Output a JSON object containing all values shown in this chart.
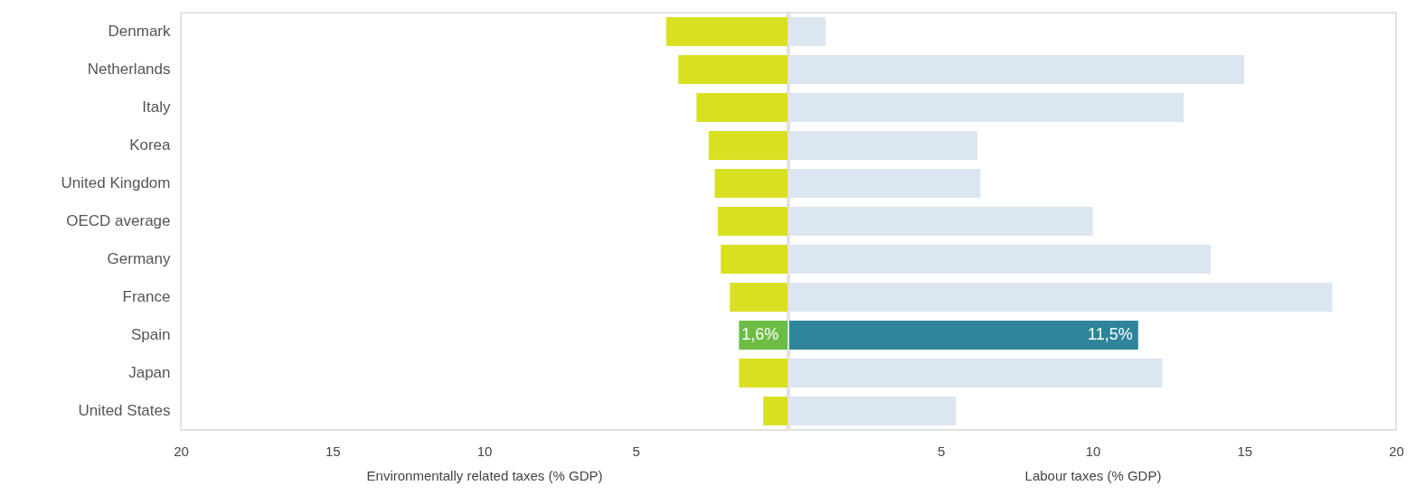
{
  "chart_data": [
    {
      "type": "bar",
      "orientation": "horizontal",
      "categories": [
        "Denmark",
        "Netherlands",
        "Italy",
        "Korea",
        "United Kingdom",
        "OECD average",
        "Germany",
        "France",
        "Spain",
        "Japan",
        "United States"
      ],
      "values": [
        4.0,
        3.6,
        3.0,
        2.6,
        2.4,
        2.3,
        2.2,
        1.9,
        1.6,
        1.6,
        0.8
      ],
      "colors": [
        "#d9e021",
        "#d9e021",
        "#d9e021",
        "#d9e021",
        "#d9e021",
        "#d9e021",
        "#d9e021",
        "#d9e021",
        "#6cbd45",
        "#d9e021",
        "#d9e021"
      ],
      "value_labels": [
        null,
        null,
        null,
        null,
        null,
        null,
        null,
        null,
        "1,6%",
        null,
        null
      ],
      "xlabel": "Environmentally related taxes (% GDP)",
      "xlim": [
        20,
        0
      ],
      "xticks": [
        20,
        15,
        10,
        5
      ]
    },
    {
      "type": "bar",
      "orientation": "horizontal",
      "categories": [
        "Denmark",
        "Netherlands",
        "Italy",
        "Korea",
        "United Kingdom",
        "OECD average",
        "Germany",
        "France",
        "Spain",
        "Japan",
        "United States"
      ],
      "values": [
        1.2,
        15.0,
        13.0,
        6.2,
        6.3,
        10.0,
        13.9,
        17.9,
        11.5,
        12.3,
        5.5
      ],
      "colors": [
        "#dce6f1",
        "#dce6f1",
        "#dce6f1",
        "#dce6f1",
        "#dce6f1",
        "#dce6f1",
        "#dce6f1",
        "#dce6f1",
        "#2e8599",
        "#dce6f1",
        "#dce6f1"
      ],
      "value_labels": [
        null,
        null,
        null,
        null,
        null,
        null,
        null,
        null,
        "11,5%",
        null,
        null
      ],
      "xlabel": "Labour taxes (% GDP)",
      "xlim": [
        0,
        20
      ],
      "xticks": [
        5,
        10,
        15,
        20
      ],
      "tick_labels": "x"
    }
  ]
}
